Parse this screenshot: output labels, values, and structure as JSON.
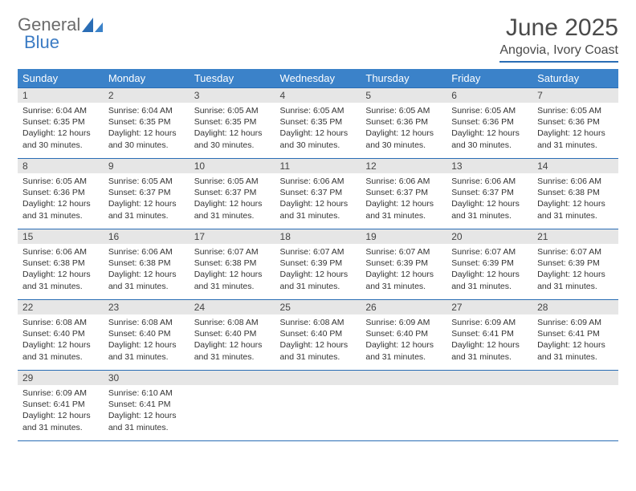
{
  "brand": {
    "part1": "General",
    "part2": "Blue"
  },
  "title": "June 2025",
  "subtitle": "Angovia, Ivory Coast",
  "colors": {
    "header_bg": "#3b82c9",
    "header_text": "#ffffff",
    "border": "#2a6db5",
    "daynum_bg": "#e6e6e6",
    "logo_gray": "#6b6b6b",
    "logo_blue": "#3b7bc4"
  },
  "weekdays": [
    "Sunday",
    "Monday",
    "Tuesday",
    "Wednesday",
    "Thursday",
    "Friday",
    "Saturday"
  ],
  "weeks": [
    [
      {
        "n": "1",
        "sr": "Sunrise: 6:04 AM",
        "ss": "Sunset: 6:35 PM",
        "d1": "Daylight: 12 hours",
        "d2": "and 30 minutes."
      },
      {
        "n": "2",
        "sr": "Sunrise: 6:04 AM",
        "ss": "Sunset: 6:35 PM",
        "d1": "Daylight: 12 hours",
        "d2": "and 30 minutes."
      },
      {
        "n": "3",
        "sr": "Sunrise: 6:05 AM",
        "ss": "Sunset: 6:35 PM",
        "d1": "Daylight: 12 hours",
        "d2": "and 30 minutes."
      },
      {
        "n": "4",
        "sr": "Sunrise: 6:05 AM",
        "ss": "Sunset: 6:35 PM",
        "d1": "Daylight: 12 hours",
        "d2": "and 30 minutes."
      },
      {
        "n": "5",
        "sr": "Sunrise: 6:05 AM",
        "ss": "Sunset: 6:36 PM",
        "d1": "Daylight: 12 hours",
        "d2": "and 30 minutes."
      },
      {
        "n": "6",
        "sr": "Sunrise: 6:05 AM",
        "ss": "Sunset: 6:36 PM",
        "d1": "Daylight: 12 hours",
        "d2": "and 30 minutes."
      },
      {
        "n": "7",
        "sr": "Sunrise: 6:05 AM",
        "ss": "Sunset: 6:36 PM",
        "d1": "Daylight: 12 hours",
        "d2": "and 31 minutes."
      }
    ],
    [
      {
        "n": "8",
        "sr": "Sunrise: 6:05 AM",
        "ss": "Sunset: 6:36 PM",
        "d1": "Daylight: 12 hours",
        "d2": "and 31 minutes."
      },
      {
        "n": "9",
        "sr": "Sunrise: 6:05 AM",
        "ss": "Sunset: 6:37 PM",
        "d1": "Daylight: 12 hours",
        "d2": "and 31 minutes."
      },
      {
        "n": "10",
        "sr": "Sunrise: 6:05 AM",
        "ss": "Sunset: 6:37 PM",
        "d1": "Daylight: 12 hours",
        "d2": "and 31 minutes."
      },
      {
        "n": "11",
        "sr": "Sunrise: 6:06 AM",
        "ss": "Sunset: 6:37 PM",
        "d1": "Daylight: 12 hours",
        "d2": "and 31 minutes."
      },
      {
        "n": "12",
        "sr": "Sunrise: 6:06 AM",
        "ss": "Sunset: 6:37 PM",
        "d1": "Daylight: 12 hours",
        "d2": "and 31 minutes."
      },
      {
        "n": "13",
        "sr": "Sunrise: 6:06 AM",
        "ss": "Sunset: 6:37 PM",
        "d1": "Daylight: 12 hours",
        "d2": "and 31 minutes."
      },
      {
        "n": "14",
        "sr": "Sunrise: 6:06 AM",
        "ss": "Sunset: 6:38 PM",
        "d1": "Daylight: 12 hours",
        "d2": "and 31 minutes."
      }
    ],
    [
      {
        "n": "15",
        "sr": "Sunrise: 6:06 AM",
        "ss": "Sunset: 6:38 PM",
        "d1": "Daylight: 12 hours",
        "d2": "and 31 minutes."
      },
      {
        "n": "16",
        "sr": "Sunrise: 6:06 AM",
        "ss": "Sunset: 6:38 PM",
        "d1": "Daylight: 12 hours",
        "d2": "and 31 minutes."
      },
      {
        "n": "17",
        "sr": "Sunrise: 6:07 AM",
        "ss": "Sunset: 6:38 PM",
        "d1": "Daylight: 12 hours",
        "d2": "and 31 minutes."
      },
      {
        "n": "18",
        "sr": "Sunrise: 6:07 AM",
        "ss": "Sunset: 6:39 PM",
        "d1": "Daylight: 12 hours",
        "d2": "and 31 minutes."
      },
      {
        "n": "19",
        "sr": "Sunrise: 6:07 AM",
        "ss": "Sunset: 6:39 PM",
        "d1": "Daylight: 12 hours",
        "d2": "and 31 minutes."
      },
      {
        "n": "20",
        "sr": "Sunrise: 6:07 AM",
        "ss": "Sunset: 6:39 PM",
        "d1": "Daylight: 12 hours",
        "d2": "and 31 minutes."
      },
      {
        "n": "21",
        "sr": "Sunrise: 6:07 AM",
        "ss": "Sunset: 6:39 PM",
        "d1": "Daylight: 12 hours",
        "d2": "and 31 minutes."
      }
    ],
    [
      {
        "n": "22",
        "sr": "Sunrise: 6:08 AM",
        "ss": "Sunset: 6:40 PM",
        "d1": "Daylight: 12 hours",
        "d2": "and 31 minutes."
      },
      {
        "n": "23",
        "sr": "Sunrise: 6:08 AM",
        "ss": "Sunset: 6:40 PM",
        "d1": "Daylight: 12 hours",
        "d2": "and 31 minutes."
      },
      {
        "n": "24",
        "sr": "Sunrise: 6:08 AM",
        "ss": "Sunset: 6:40 PM",
        "d1": "Daylight: 12 hours",
        "d2": "and 31 minutes."
      },
      {
        "n": "25",
        "sr": "Sunrise: 6:08 AM",
        "ss": "Sunset: 6:40 PM",
        "d1": "Daylight: 12 hours",
        "d2": "and 31 minutes."
      },
      {
        "n": "26",
        "sr": "Sunrise: 6:09 AM",
        "ss": "Sunset: 6:40 PM",
        "d1": "Daylight: 12 hours",
        "d2": "and 31 minutes."
      },
      {
        "n": "27",
        "sr": "Sunrise: 6:09 AM",
        "ss": "Sunset: 6:41 PM",
        "d1": "Daylight: 12 hours",
        "d2": "and 31 minutes."
      },
      {
        "n": "28",
        "sr": "Sunrise: 6:09 AM",
        "ss": "Sunset: 6:41 PM",
        "d1": "Daylight: 12 hours",
        "d2": "and 31 minutes."
      }
    ],
    [
      {
        "n": "29",
        "sr": "Sunrise: 6:09 AM",
        "ss": "Sunset: 6:41 PM",
        "d1": "Daylight: 12 hours",
        "d2": "and 31 minutes."
      },
      {
        "n": "30",
        "sr": "Sunrise: 6:10 AM",
        "ss": "Sunset: 6:41 PM",
        "d1": "Daylight: 12 hours",
        "d2": "and 31 minutes."
      },
      null,
      null,
      null,
      null,
      null
    ]
  ]
}
